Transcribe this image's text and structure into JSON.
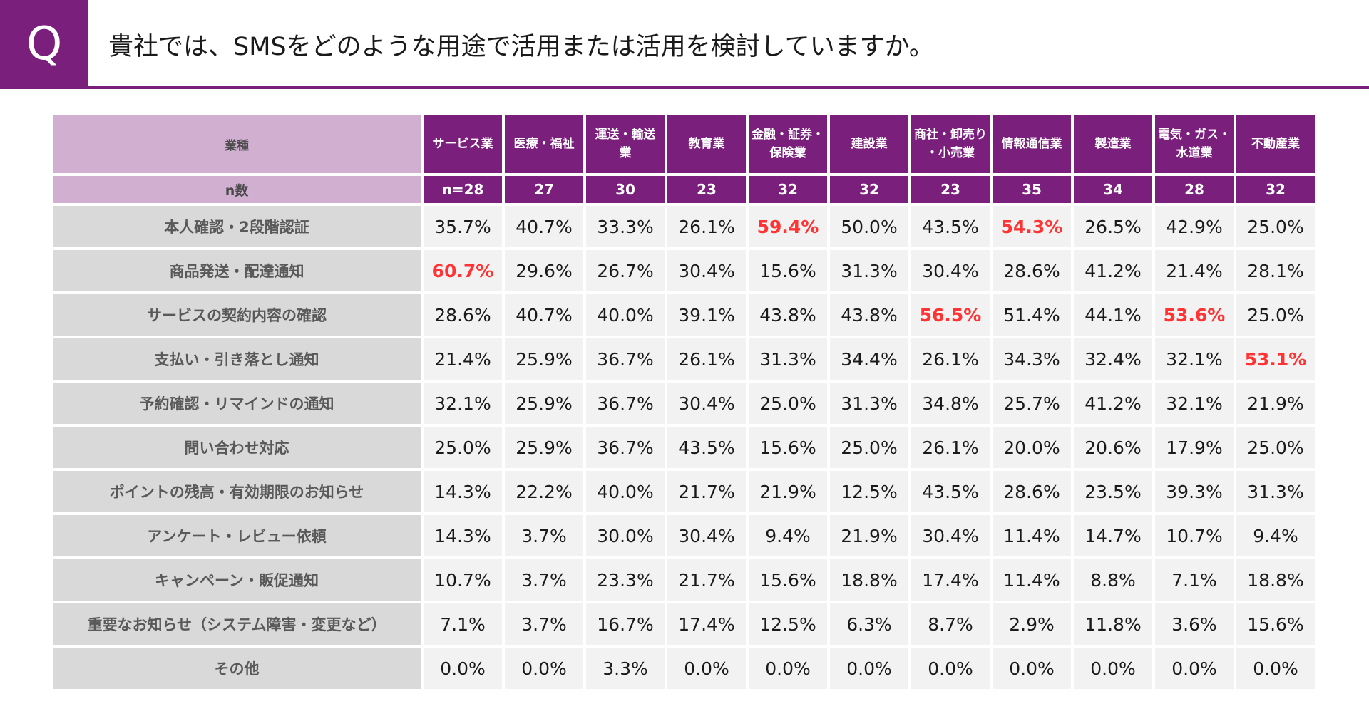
{
  "header": {
    "q_label": "Q",
    "question": "貴社では、SMSをどのような用途で活用または活用を検討していますか。"
  },
  "colors": {
    "accent": "#7b1f7d",
    "header_light": "#d1afd1",
    "row_label_bg": "#d9d9d9",
    "cell_bg": "#f2f2f2",
    "highlight": "#ff3333"
  },
  "chart_data": {
    "type": "table",
    "corner_label": "業種",
    "n_label": "n数",
    "columns": [
      {
        "label": "サービス業",
        "n": "n=28"
      },
      {
        "label": "医療・福祉",
        "n": "27"
      },
      {
        "label": "運送・輸送業",
        "n": "30"
      },
      {
        "label": "教育業",
        "n": "23"
      },
      {
        "label": "金融・証券・保険業",
        "n": "32"
      },
      {
        "label": "建設業",
        "n": "32"
      },
      {
        "label": "商社・卸売り・小売業",
        "n": "23"
      },
      {
        "label": "情報通信業",
        "n": "35"
      },
      {
        "label": "製造業",
        "n": "34"
      },
      {
        "label": "電気・ガス・水道業",
        "n": "28"
      },
      {
        "label": "不動産業",
        "n": "32"
      }
    ],
    "rows": [
      {
        "label": "本人確認・2段階認証",
        "values": [
          "35.7%",
          "40.7%",
          "33.3%",
          "26.1%",
          "59.4%",
          "50.0%",
          "43.5%",
          "54.3%",
          "26.5%",
          "42.9%",
          "25.0%"
        ],
        "highlight": [
          4,
          7
        ]
      },
      {
        "label": "商品発送・配達通知",
        "values": [
          "60.7%",
          "29.6%",
          "26.7%",
          "30.4%",
          "15.6%",
          "31.3%",
          "30.4%",
          "28.6%",
          "41.2%",
          "21.4%",
          "28.1%"
        ],
        "highlight": [
          0
        ]
      },
      {
        "label": "サービスの契約内容の確認",
        "values": [
          "28.6%",
          "40.7%",
          "40.0%",
          "39.1%",
          "43.8%",
          "43.8%",
          "56.5%",
          "51.4%",
          "44.1%",
          "53.6%",
          "25.0%"
        ],
        "highlight": [
          6,
          9
        ]
      },
      {
        "label": "支払い・引き落とし通知",
        "values": [
          "21.4%",
          "25.9%",
          "36.7%",
          "26.1%",
          "31.3%",
          "34.4%",
          "26.1%",
          "34.3%",
          "32.4%",
          "32.1%",
          "53.1%"
        ],
        "highlight": [
          10
        ]
      },
      {
        "label": "予約確認・リマインドの通知",
        "values": [
          "32.1%",
          "25.9%",
          "36.7%",
          "30.4%",
          "25.0%",
          "31.3%",
          "34.8%",
          "25.7%",
          "41.2%",
          "32.1%",
          "21.9%"
        ],
        "highlight": []
      },
      {
        "label": "問い合わせ対応",
        "values": [
          "25.0%",
          "25.9%",
          "36.7%",
          "43.5%",
          "15.6%",
          "25.0%",
          "26.1%",
          "20.0%",
          "20.6%",
          "17.9%",
          "25.0%"
        ],
        "highlight": []
      },
      {
        "label": "ポイントの残高・有効期限のお知らせ",
        "values": [
          "14.3%",
          "22.2%",
          "40.0%",
          "21.7%",
          "21.9%",
          "12.5%",
          "43.5%",
          "28.6%",
          "23.5%",
          "39.3%",
          "31.3%"
        ],
        "highlight": []
      },
      {
        "label": "アンケート・レビュー依頼",
        "values": [
          "14.3%",
          "3.7%",
          "30.0%",
          "30.4%",
          "9.4%",
          "21.9%",
          "30.4%",
          "11.4%",
          "14.7%",
          "10.7%",
          "9.4%"
        ],
        "highlight": []
      },
      {
        "label": "キャンペーン・販促通知",
        "values": [
          "10.7%",
          "3.7%",
          "23.3%",
          "21.7%",
          "15.6%",
          "18.8%",
          "17.4%",
          "11.4%",
          "8.8%",
          "7.1%",
          "18.8%"
        ],
        "highlight": []
      },
      {
        "label": "重要なお知らせ（システム障害・変更など）",
        "values": [
          "7.1%",
          "3.7%",
          "16.7%",
          "17.4%",
          "12.5%",
          "6.3%",
          "8.7%",
          "2.9%",
          "11.8%",
          "3.6%",
          "15.6%"
        ],
        "highlight": []
      },
      {
        "label": "その他",
        "values": [
          "0.0%",
          "0.0%",
          "3.3%",
          "0.0%",
          "0.0%",
          "0.0%",
          "0.0%",
          "0.0%",
          "0.0%",
          "0.0%",
          "0.0%"
        ],
        "highlight": []
      }
    ]
  }
}
